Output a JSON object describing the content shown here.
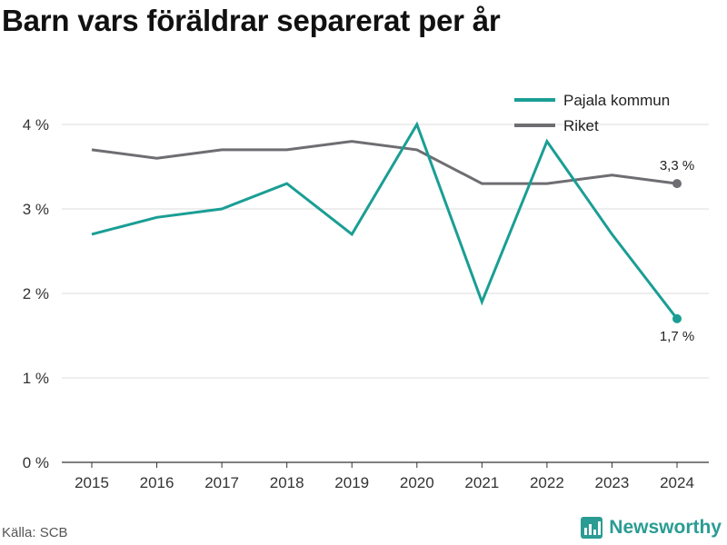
{
  "title": "Barn vars föräldrar separerat per år",
  "source": "Källa: SCB",
  "brand": "Newsworthy",
  "chart_data": {
    "type": "line",
    "x": [
      "2015",
      "2016",
      "2017",
      "2018",
      "2019",
      "2020",
      "2021",
      "2022",
      "2023",
      "2024"
    ],
    "series": [
      {
        "name": "Pajala kommun",
        "color": "#1a9e94",
        "values": [
          2.7,
          2.9,
          3.0,
          3.3,
          2.7,
          4.0,
          1.9,
          3.8,
          2.7,
          1.7
        ],
        "end_label": "1,7 %"
      },
      {
        "name": "Riket",
        "color": "#6e6e72",
        "values": [
          3.7,
          3.6,
          3.7,
          3.7,
          3.8,
          3.7,
          3.3,
          3.3,
          3.4,
          3.3
        ],
        "end_label": "3,3 %"
      }
    ],
    "yticks": [
      0,
      1,
      2,
      3,
      4
    ],
    "ytick_labels": [
      "0 %",
      "1 %",
      "2 %",
      "3 %",
      "4 %"
    ],
    "ylim": [
      0,
      4
    ],
    "grid": true,
    "legend_position": "top-right",
    "xlabel": "",
    "ylabel": ""
  }
}
